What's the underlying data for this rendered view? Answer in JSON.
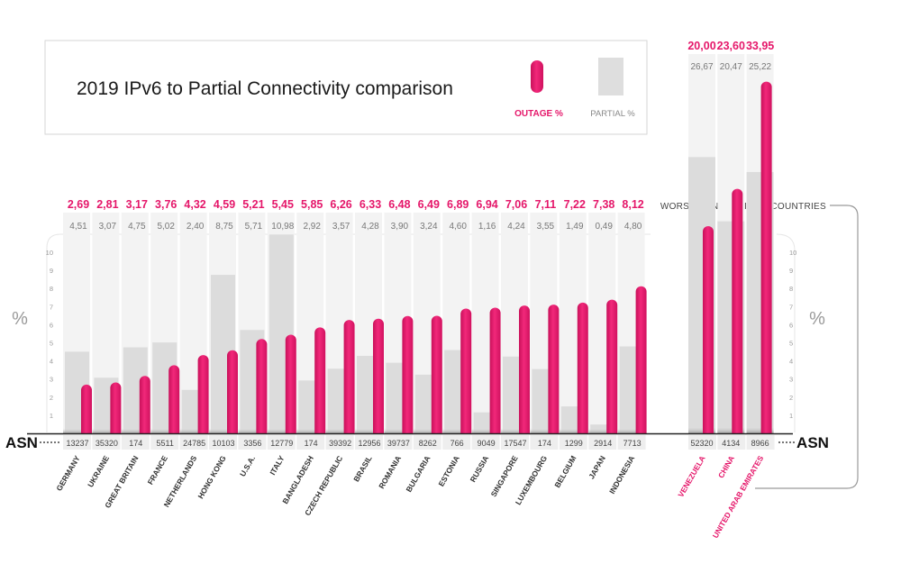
{
  "title": "2019 IPv6 to Partial Connectivity comparison",
  "legend": {
    "outage_label": "OUTAGE %",
    "partial_label": "PARTIAL %"
  },
  "colors": {
    "outage": "#e5176a",
    "partial": "#dcdcdc",
    "column_bg": "#f3f3f3"
  },
  "axis": {
    "unit_left": "%",
    "unit_right": "%",
    "asn_left": "ASN",
    "asn_right": "ASN",
    "ticks": [
      "1",
      "2",
      "3",
      "4",
      "5",
      "6",
      "7",
      "8",
      "9",
      "10"
    ]
  },
  "worst_label": "WORST CONNECTIVITY COUNTRIES",
  "chart_data": {
    "type": "bar",
    "title": "2019 IPv6 to Partial Connectivity comparison",
    "ylim": [
      0,
      11
    ],
    "grid": false,
    "legend_placement": "top",
    "series": [
      {
        "name": "OUTAGE %"
      },
      {
        "name": "PARTIAL %"
      }
    ],
    "countries": [
      {
        "name": "GERMANY",
        "asn": "13237",
        "outage": 2.69,
        "partial": 4.51,
        "outage_label": "2,69",
        "partial_label": "4,51"
      },
      {
        "name": "UKRAINE",
        "asn": "35320",
        "outage": 2.81,
        "partial": 3.07,
        "outage_label": "2,81",
        "partial_label": "3,07"
      },
      {
        "name": "GREAT BRITAIN",
        "asn": "174",
        "outage": 3.17,
        "partial": 4.75,
        "outage_label": "3,17",
        "partial_label": "4,75"
      },
      {
        "name": "FRANCE",
        "asn": "5511",
        "outage": 3.76,
        "partial": 5.02,
        "outage_label": "3,76",
        "partial_label": "5,02"
      },
      {
        "name": "NETHERLANDS",
        "asn": "24785",
        "outage": 4.32,
        "partial": 2.4,
        "outage_label": "4,32",
        "partial_label": "2,40"
      },
      {
        "name": "HONG KONG",
        "asn": "10103",
        "outage": 4.59,
        "partial": 8.75,
        "outage_label": "4,59",
        "partial_label": "8,75"
      },
      {
        "name": "U.S.A.",
        "asn": "3356",
        "outage": 5.21,
        "partial": 5.71,
        "outage_label": "5,21",
        "partial_label": "5,71"
      },
      {
        "name": "ITALY",
        "asn": "12779",
        "outage": 5.45,
        "partial": 10.98,
        "outage_label": "5,45",
        "partial_label": "10,98"
      },
      {
        "name": "BANGLADESH",
        "asn": "174",
        "outage": 5.85,
        "partial": 2.92,
        "outage_label": "5,85",
        "partial_label": "2,92"
      },
      {
        "name": "CZECH REPUBLIC",
        "asn": "39392",
        "outage": 6.26,
        "partial": 3.57,
        "outage_label": "6,26",
        "partial_label": "3,57"
      },
      {
        "name": "BRASIL",
        "asn": "12956",
        "outage": 6.33,
        "partial": 4.28,
        "outage_label": "6,33",
        "partial_label": "4,28"
      },
      {
        "name": "ROMANIA",
        "asn": "39737",
        "outage": 6.48,
        "partial": 3.9,
        "outage_label": "6,48",
        "partial_label": "3,90"
      },
      {
        "name": "BULGARIA",
        "asn": "8262",
        "outage": 6.49,
        "partial": 3.24,
        "outage_label": "6,49",
        "partial_label": "3,24"
      },
      {
        "name": "ESTONIA",
        "asn": "766",
        "outage": 6.89,
        "partial": 4.6,
        "outage_label": "6,89",
        "partial_label": "4,60"
      },
      {
        "name": "RUSSIA",
        "asn": "9049",
        "outage": 6.94,
        "partial": 1.16,
        "outage_label": "6,94",
        "partial_label": "1,16"
      },
      {
        "name": "SINGAPORE",
        "asn": "17547",
        "outage": 7.06,
        "partial": 4.24,
        "outage_label": "7,06",
        "partial_label": "4,24"
      },
      {
        "name": "LUXEMBOURG",
        "asn": "174",
        "outage": 7.11,
        "partial": 3.55,
        "outage_label": "7,11",
        "partial_label": "3,55"
      },
      {
        "name": "BELGIUM",
        "asn": "1299",
        "outage": 7.22,
        "partial": 1.49,
        "outage_label": "7,22",
        "partial_label": "1,49"
      },
      {
        "name": "JAPAN",
        "asn": "2914",
        "outage": 7.38,
        "partial": 0.49,
        "outage_label": "7,38",
        "partial_label": "0,49"
      },
      {
        "name": "INDONESIA",
        "asn": "7713",
        "outage": 8.12,
        "partial": 4.8,
        "outage_label": "8,12",
        "partial_label": "4,80"
      }
    ],
    "worst_countries": [
      {
        "name": "VENEZUELA",
        "asn": "52320",
        "outage": 20.0,
        "partial": 26.67,
        "outage_label": "20,00",
        "partial_label": "26,67"
      },
      {
        "name": "CHINA",
        "asn": "4134",
        "outage": 23.6,
        "partial": 20.47,
        "outage_label": "23,60",
        "partial_label": "20,47"
      },
      {
        "name": "UNITED ARAB EMIRATES",
        "asn": "8966",
        "outage": 33.95,
        "partial": 25.22,
        "outage_label": "33,95",
        "partial_label": "25,22"
      }
    ]
  }
}
